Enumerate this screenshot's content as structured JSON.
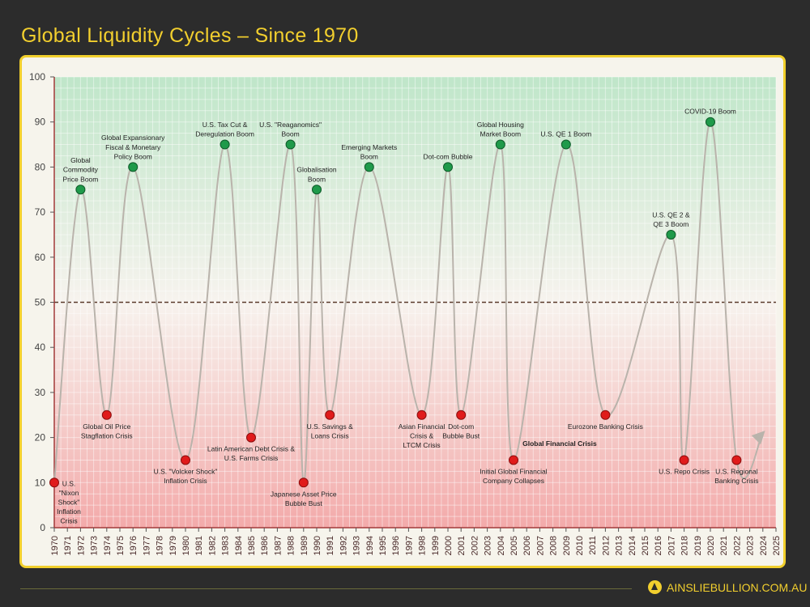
{
  "header": {
    "title": "Global Liquidity Cycles – Since 1970"
  },
  "footer": {
    "brand": "AINSLIEBULLION.COM.AU"
  },
  "colors": {
    "title": "#f2cf2e",
    "boom": "#1f9a4a",
    "crisis": "#e01b1b",
    "line": "#b9b3ab",
    "midline": "#5a3a2a",
    "axis": "#a33a3a"
  },
  "chart_data": {
    "type": "line",
    "title": "Global Liquidity Cycles – Since 1970",
    "xlim": [
      1970,
      2025
    ],
    "ylim": [
      0,
      100
    ],
    "x_ticks": [
      1970,
      1971,
      1972,
      1973,
      1974,
      1975,
      1976,
      1977,
      1978,
      1979,
      1980,
      1981,
      1982,
      1983,
      1984,
      1985,
      1986,
      1987,
      1988,
      1989,
      1990,
      1991,
      1992,
      1993,
      1994,
      1995,
      1996,
      1997,
      1998,
      1999,
      2000,
      2001,
      2002,
      2003,
      2004,
      2005,
      2006,
      2007,
      2008,
      2009,
      2010,
      2011,
      2012,
      2013,
      2014,
      2015,
      2016,
      2017,
      2018,
      2019,
      2020,
      2021,
      2022,
      2023,
      2024,
      2025
    ],
    "y_ticks": [
      0,
      10,
      20,
      30,
      40,
      50,
      60,
      70,
      80,
      90,
      100
    ],
    "grid": true,
    "reference_line": 50,
    "points": [
      {
        "x": 1970,
        "y": 10,
        "kind": "crisis",
        "label": [
          "U.S.",
          "\"Nixon",
          "Shock\"",
          "Inflation",
          "Crisis"
        ]
      },
      {
        "x": 1972,
        "y": 75,
        "kind": "boom",
        "label": [
          "Global",
          "Commodity",
          "Price Boom"
        ]
      },
      {
        "x": 1974,
        "y": 25,
        "kind": "crisis",
        "label": [
          "Global Oil Price",
          "Stagflation Crisis"
        ]
      },
      {
        "x": 1976,
        "y": 80,
        "kind": "boom",
        "label": [
          "Global Expansionary",
          "Fiscal & Monetary",
          "Policy Boom"
        ]
      },
      {
        "x": 1980,
        "y": 15,
        "kind": "crisis",
        "label": [
          "U.S. \"Volcker Shock\"",
          "Inflation Crisis"
        ]
      },
      {
        "x": 1983,
        "y": 85,
        "kind": "boom",
        "label": [
          "U.S. Tax Cut &",
          "Deregulation Boom"
        ]
      },
      {
        "x": 1985,
        "y": 20,
        "kind": "crisis",
        "label": [
          "Latin American Debt Crisis &",
          "U.S. Farms Crisis"
        ]
      },
      {
        "x": 1988,
        "y": 85,
        "kind": "boom",
        "label": [
          "U.S. \"Reaganomics\"",
          "Boom"
        ]
      },
      {
        "x": 1989,
        "y": 10,
        "kind": "crisis",
        "label": [
          "Japanese Asset Price",
          "Bubble Bust"
        ]
      },
      {
        "x": 1990,
        "y": 75,
        "kind": "boom",
        "label": [
          "Globalisation",
          "Boom"
        ]
      },
      {
        "x": 1991,
        "y": 25,
        "kind": "crisis",
        "label": [
          "U.S. Savings &",
          "Loans Crisis"
        ]
      },
      {
        "x": 1994,
        "y": 80,
        "kind": "boom",
        "label": [
          "Emerging Markets",
          "Boom"
        ]
      },
      {
        "x": 1998,
        "y": 25,
        "kind": "crisis",
        "label": [
          "Asian Financial",
          "Crisis &",
          "LTCM Crisis"
        ]
      },
      {
        "x": 2000,
        "y": 80,
        "kind": "boom",
        "label": [
          "Dot-com Bubble"
        ]
      },
      {
        "x": 2001,
        "y": 25,
        "kind": "crisis",
        "label": [
          "Dot-com",
          "Bubble Bust"
        ]
      },
      {
        "x": 2004,
        "y": 85,
        "kind": "boom",
        "label": [
          "Global Housing",
          "Market Boom"
        ]
      },
      {
        "x": 2005,
        "y": 15,
        "kind": "crisis",
        "label": [
          "Initial Global Financial",
          "Company Collapses"
        ]
      },
      {
        "x": 2009,
        "y": 85,
        "kind": "boom",
        "label": [
          "U.S. QE 1 Boom"
        ]
      },
      {
        "x": 2012,
        "y": 25,
        "kind": "crisis",
        "label": [
          "Eurozone Banking Crisis"
        ]
      },
      {
        "x": 2017,
        "y": 65,
        "kind": "boom",
        "label": [
          "U.S. QE 2 &",
          "QE 3 Boom"
        ]
      },
      {
        "x": 2018,
        "y": 15,
        "kind": "crisis",
        "label": [
          "U.S. Repo Crisis"
        ]
      },
      {
        "x": 2020,
        "y": 90,
        "kind": "boom",
        "label": [
          "COVID-19 Boom"
        ]
      },
      {
        "x": 2022,
        "y": 15,
        "kind": "crisis",
        "label": [
          "U.S. Regional",
          "Banking Crisis"
        ]
      }
    ],
    "projection_end": {
      "x": 2024,
      "y": 21
    },
    "annotations": [
      {
        "text": "Global Financial Crisis",
        "x": 2005.5,
        "y": 18.5,
        "bold": true
      }
    ]
  }
}
